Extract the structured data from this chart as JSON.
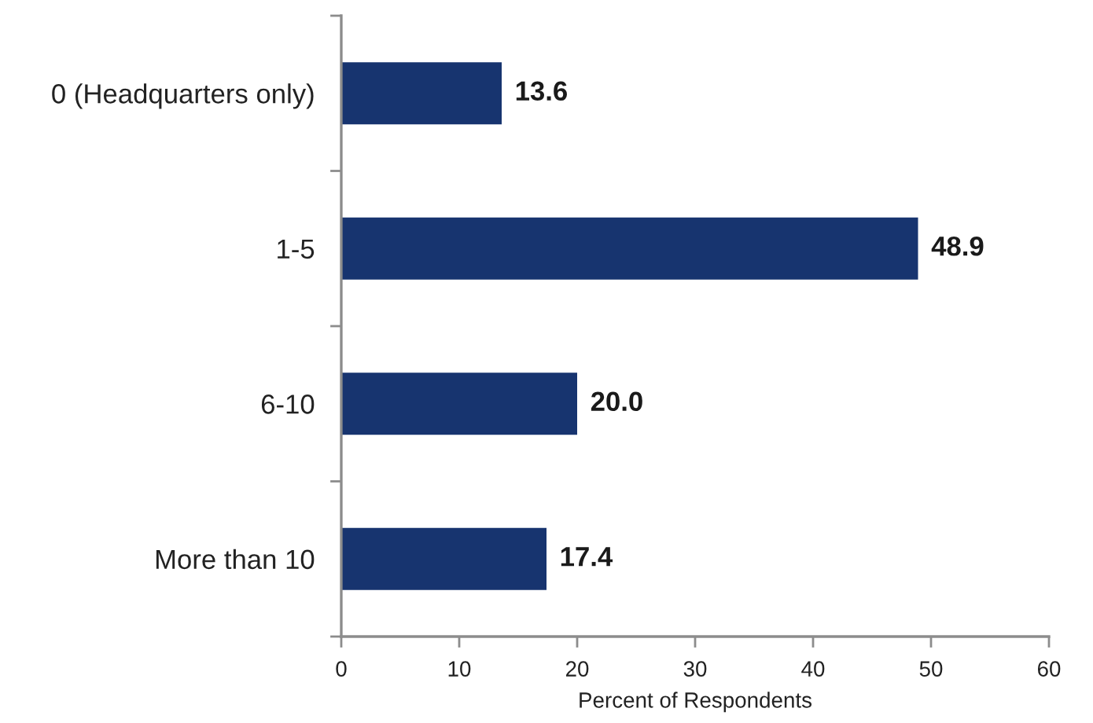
{
  "chart_data": {
    "type": "bar",
    "orientation": "horizontal",
    "categories": [
      "0 (Headquarters only)",
      "1-5",
      "6-10",
      "More than 10"
    ],
    "values": [
      13.6,
      48.9,
      20.0,
      17.4
    ],
    "color": "#17346f",
    "value_labels": [
      "13.6",
      "48.9",
      "20.0",
      "17.4"
    ],
    "xlabel": "Percent of Respondents",
    "xlim": [
      0,
      60
    ],
    "xticks": [
      0,
      10,
      20,
      30,
      40,
      50,
      60
    ],
    "grid": false
  }
}
